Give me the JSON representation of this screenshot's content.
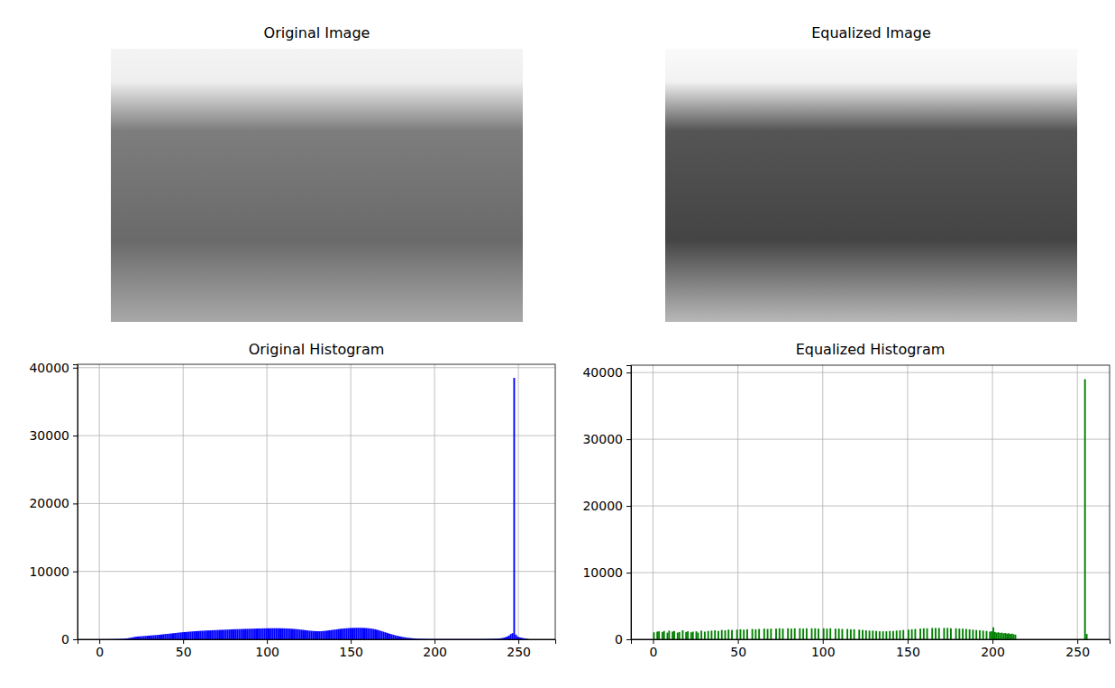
{
  "chart_data": [
    {
      "type": "image",
      "title": "Original Image",
      "tick_labels": false
    },
    {
      "type": "image",
      "title": "Equalized Image",
      "tick_labels": false
    },
    {
      "type": "histogram",
      "title": "Original Histogram",
      "color": "#0000ff",
      "grid": true,
      "xlim": [
        -13,
        272
      ],
      "ylim": [
        0,
        40500
      ],
      "xticks": [
        0,
        50,
        100,
        150,
        200,
        250
      ],
      "yticks": [
        0,
        10000,
        20000,
        30000,
        40000
      ],
      "bins": [
        0,
        1,
        2,
        3,
        4,
        5,
        6,
        7,
        8,
        9,
        10,
        11,
        12,
        13,
        14,
        15,
        16,
        17,
        18,
        19,
        20,
        21,
        22,
        23,
        24,
        25,
        26,
        27,
        28,
        29,
        30,
        31,
        32,
        33,
        34,
        35,
        36,
        37,
        38,
        39,
        40,
        41,
        42,
        43,
        44,
        45,
        46,
        47,
        48,
        49,
        50,
        51,
        52,
        53,
        54,
        55,
        56,
        57,
        58,
        59,
        60,
        61,
        62,
        63,
        64,
        65,
        66,
        67,
        68,
        69,
        70,
        71,
        72,
        73,
        74,
        75,
        76,
        77,
        78,
        79,
        80,
        81,
        82,
        83,
        84,
        85,
        86,
        87,
        88,
        89,
        90,
        91,
        92,
        93,
        94,
        95,
        96,
        97,
        98,
        99,
        100,
        101,
        102,
        103,
        104,
        105,
        106,
        107,
        108,
        109,
        110,
        111,
        112,
        113,
        114,
        115,
        116,
        117,
        118,
        119,
        120,
        121,
        122,
        123,
        124,
        125,
        126,
        127,
        128,
        129,
        130,
        131,
        132,
        133,
        134,
        135,
        136,
        137,
        138,
        139,
        140,
        141,
        142,
        143,
        144,
        145,
        146,
        147,
        148,
        149,
        150,
        151,
        152,
        153,
        154,
        155,
        156,
        157,
        158,
        159,
        160,
        161,
        162,
        163,
        164,
        165,
        166,
        167,
        168,
        169,
        170,
        171,
        172,
        173,
        174,
        175,
        176,
        177,
        178,
        179,
        180,
        181,
        182,
        183,
        184,
        185,
        186,
        187,
        188,
        189,
        190,
        191,
        192,
        193,
        194,
        195,
        196,
        197,
        198,
        199,
        200,
        201,
        202,
        203,
        204,
        205,
        206,
        207,
        208,
        209,
        210,
        211,
        212,
        213,
        214,
        215,
        216,
        217,
        218,
        219,
        220,
        221,
        222,
        223,
        224,
        225,
        226,
        227,
        228,
        229,
        230,
        231,
        232,
        233,
        234,
        235,
        236,
        237,
        238,
        239,
        240,
        241,
        242,
        243,
        244,
        245,
        246,
        247,
        248,
        249,
        250,
        251,
        252,
        253,
        254,
        255,
        256
      ],
      "values": [
        5,
        8,
        10,
        12,
        15,
        18,
        20,
        25,
        30,
        35,
        40,
        50,
        60,
        75,
        90,
        110,
        140,
        180,
        230,
        280,
        330,
        370,
        400,
        420,
        440,
        460,
        480,
        500,
        520,
        540,
        560,
        580,
        600,
        620,
        640,
        660,
        690,
        720,
        750,
        780,
        800,
        820,
        850,
        880,
        900,
        930,
        960,
        990,
        1010,
        1040,
        1060,
        1080,
        1100,
        1120,
        1140,
        1160,
        1180,
        1200,
        1210,
        1230,
        1250,
        1260,
        1270,
        1290,
        1300,
        1310,
        1320,
        1340,
        1350,
        1360,
        1370,
        1380,
        1390,
        1400,
        1410,
        1420,
        1440,
        1450,
        1460,
        1470,
        1480,
        1490,
        1500,
        1500,
        1510,
        1520,
        1530,
        1540,
        1540,
        1550,
        1560,
        1570,
        1570,
        1580,
        1590,
        1600,
        1600,
        1610,
        1610,
        1620,
        1620,
        1620,
        1630,
        1630,
        1640,
        1640,
        1630,
        1630,
        1620,
        1620,
        1610,
        1600,
        1590,
        1580,
        1560,
        1540,
        1520,
        1500,
        1480,
        1450,
        1420,
        1390,
        1360,
        1330,
        1300,
        1270,
        1250,
        1230,
        1210,
        1200,
        1190,
        1190,
        1200,
        1220,
        1240,
        1270,
        1300,
        1330,
        1370,
        1400,
        1430,
        1460,
        1500,
        1530,
        1560,
        1590,
        1610,
        1630,
        1650,
        1660,
        1670,
        1680,
        1690,
        1700,
        1700,
        1700,
        1690,
        1680,
        1670,
        1650,
        1630,
        1600,
        1570,
        1530,
        1480,
        1420,
        1350,
        1280,
        1200,
        1120,
        1040,
        960,
        880,
        800,
        730,
        660,
        590,
        530,
        470,
        420,
        370,
        330,
        290,
        250,
        220,
        190,
        160,
        140,
        120,
        100,
        90,
        80,
        70,
        65,
        60,
        55,
        50,
        50,
        45,
        45,
        40,
        40,
        40,
        40,
        40,
        40,
        40,
        40,
        40,
        40,
        40,
        40,
        40,
        40,
        40,
        40,
        40,
        40,
        40,
        40,
        40,
        40,
        40,
        40,
        40,
        40,
        40,
        45,
        45,
        50,
        50,
        55,
        60,
        65,
        70,
        80,
        90,
        100,
        120,
        150,
        200,
        260,
        330,
        420,
        560,
        780,
        900,
        38500,
        700,
        420,
        300,
        250,
        200,
        150,
        100,
        80
      ]
    },
    {
      "type": "histogram",
      "title": "Equalized Histogram",
      "color": "#008000",
      "grid": true,
      "xlim": [
        -13,
        269
      ],
      "ylim": [
        0,
        41100
      ],
      "xticks": [
        0,
        50,
        100,
        150,
        200,
        250
      ],
      "yticks": [
        0,
        10000,
        20000,
        30000,
        40000
      ],
      "bins": [
        0,
        1,
        2,
        3,
        4,
        5,
        6,
        7,
        8,
        9,
        10,
        11,
        12,
        13,
        14,
        15,
        16,
        17,
        18,
        19,
        20,
        21,
        22,
        23,
        24,
        25,
        26,
        27,
        28,
        29,
        30,
        31,
        32,
        33,
        34,
        35,
        36,
        37,
        38,
        39,
        40,
        41,
        42,
        43,
        44,
        45,
        46,
        47,
        48,
        49,
        50,
        51,
        52,
        53,
        54,
        55,
        56,
        57,
        58,
        59,
        60,
        61,
        62,
        63,
        64,
        65,
        66,
        67,
        68,
        69,
        70,
        71,
        72,
        73,
        74,
        75,
        76,
        77,
        78,
        79,
        80,
        81,
        82,
        83,
        84,
        85,
        86,
        87,
        88,
        89,
        90,
        91,
        92,
        93,
        94,
        95,
        96,
        97,
        98,
        99,
        100,
        101,
        102,
        103,
        104,
        105,
        106,
        107,
        108,
        109,
        110,
        111,
        112,
        113,
        114,
        115,
        116,
        117,
        118,
        119,
        120,
        121,
        122,
        123,
        124,
        125,
        126,
        127,
        128,
        129,
        130,
        131,
        132,
        133,
        134,
        135,
        136,
        137,
        138,
        139,
        140,
        141,
        142,
        143,
        144,
        145,
        146,
        147,
        148,
        149,
        150,
        151,
        152,
        153,
        154,
        155,
        156,
        157,
        158,
        159,
        160,
        161,
        162,
        163,
        164,
        165,
        166,
        167,
        168,
        169,
        170,
        171,
        172,
        173,
        174,
        175,
        176,
        177,
        178,
        179,
        180,
        181,
        182,
        183,
        184,
        185,
        186,
        187,
        188,
        189,
        190,
        191,
        192,
        193,
        194,
        195,
        196,
        197,
        198,
        199,
        200,
        201,
        202,
        203,
        204,
        205,
        206,
        207,
        208,
        209,
        210,
        211,
        212,
        213,
        214,
        215,
        216,
        217,
        218,
        219,
        220,
        221,
        222,
        223,
        224,
        225,
        226,
        227,
        228,
        229,
        230,
        231,
        232,
        233,
        234,
        235,
        236,
        237,
        238,
        239,
        240,
        241,
        242,
        243,
        244,
        245,
        246,
        247,
        248,
        249,
        250,
        251,
        252,
        253,
        254,
        255,
        256
      ],
      "values": [
        1050,
        0,
        1150,
        1200,
        0,
        1100,
        1250,
        0,
        1000,
        1300,
        0,
        1150,
        1250,
        0,
        1000,
        1100,
        0,
        1350,
        0,
        1100,
        1200,
        0,
        1050,
        1150,
        0,
        1200,
        1000,
        0,
        1300,
        0,
        1150,
        0,
        1250,
        0,
        1300,
        0,
        1350,
        0,
        1250,
        0,
        1400,
        0,
        1350,
        0,
        1450,
        0,
        1400,
        0,
        0,
        1450,
        0,
        1500,
        0,
        1450,
        0,
        1500,
        0,
        0,
        1550,
        0,
        1500,
        0,
        1550,
        0,
        0,
        1600,
        0,
        1550,
        0,
        1600,
        0,
        0,
        1600,
        0,
        1650,
        0,
        1600,
        0,
        0,
        1650,
        0,
        1600,
        0,
        1650,
        0,
        0,
        1650,
        0,
        1600,
        0,
        1650,
        0,
        0,
        1650,
        0,
        1650,
        0,
        1600,
        0,
        0,
        1650,
        0,
        1600,
        0,
        1650,
        0,
        0,
        1600,
        0,
        1600,
        0,
        1550,
        0,
        0,
        1550,
        0,
        1500,
        0,
        1500,
        0,
        0,
        1450,
        0,
        1400,
        0,
        1350,
        0,
        1300,
        0,
        1300,
        0,
        1250,
        0,
        1200,
        0,
        1200,
        0,
        1200,
        0,
        1250,
        0,
        1250,
        0,
        1300,
        0,
        1350,
        0,
        1400,
        0,
        0,
        1450,
        0,
        1500,
        0,
        1550,
        0,
        0,
        1600,
        0,
        1650,
        0,
        1650,
        0,
        0,
        1700,
        0,
        1700,
        0,
        1700,
        0,
        0,
        1700,
        0,
        1700,
        0,
        1650,
        0,
        0,
        1650,
        0,
        1600,
        0,
        1600,
        0,
        1550,
        0,
        1500,
        0,
        1450,
        0,
        1400,
        0,
        1350,
        0,
        1300,
        0,
        1250,
        0,
        1150,
        1200,
        1800,
        1100,
        1000,
        1050,
        950,
        1000,
        900,
        950,
        850,
        900,
        800,
        850,
        750,
        700,
        0,
        0,
        0,
        0,
        0,
        0,
        0,
        0,
        0,
        0,
        0,
        0,
        0,
        0,
        0,
        0,
        0,
        0,
        0,
        0,
        0,
        0,
        0,
        0,
        0,
        0,
        0,
        0,
        0,
        0,
        0,
        0,
        0,
        0,
        0,
        0,
        0,
        0,
        0,
        0,
        39000,
        800
      ]
    }
  ]
}
